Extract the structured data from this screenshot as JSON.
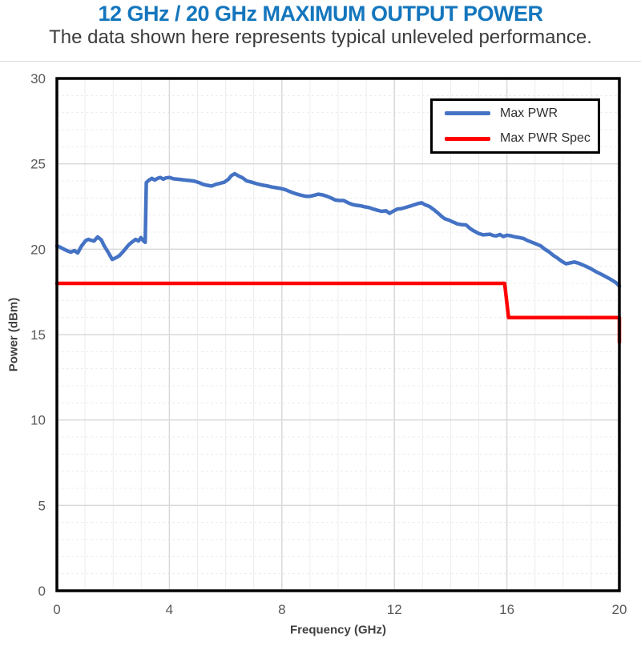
{
  "header": {
    "divider": true
  },
  "colors": {
    "title_text": "#1476BD",
    "subtitle_text": "#3C3C3C",
    "axis_text": "#595959",
    "grid_major": "#D9D9D9",
    "grid_minor": "#ECECEC",
    "plot_border": "#000000",
    "legend_border": "#000000",
    "max_pwr": "#4472C4",
    "max_pwr_spec": "#FF0000"
  },
  "chart_data": {
    "type": "line",
    "title": "12 GHz / 20 GHz MAXIMUM OUTPUT POWER",
    "subtitle": "The data shown here represents typical unleveled performance.",
    "xlabel": "Frequency (GHz)",
    "ylabel": "Power (dBm)",
    "xlim": [
      0,
      20
    ],
    "ylim": [
      0,
      30
    ],
    "x_ticks": [
      0,
      4,
      8,
      12,
      16,
      20
    ],
    "y_ticks": [
      0,
      5,
      10,
      15,
      20,
      25,
      30
    ],
    "minor_grid_step_x": 1,
    "minor_grid_step_y": 1,
    "grid": "major+minor",
    "legend_position": "top-right",
    "series": [
      {
        "name": "Max PWR",
        "color": "#4472C4",
        "points": [
          [
            0,
            20.2
          ],
          [
            0.12,
            20.12
          ],
          [
            0.25,
            20.0
          ],
          [
            0.38,
            19.9
          ],
          [
            0.5,
            19.83
          ],
          [
            0.62,
            19.92
          ],
          [
            0.74,
            19.78
          ],
          [
            0.88,
            20.2
          ],
          [
            1.02,
            20.5
          ],
          [
            1.12,
            20.58
          ],
          [
            1.22,
            20.52
          ],
          [
            1.32,
            20.48
          ],
          [
            1.45,
            20.72
          ],
          [
            1.58,
            20.54
          ],
          [
            1.68,
            20.2
          ],
          [
            1.82,
            19.83
          ],
          [
            1.97,
            19.4
          ],
          [
            2.1,
            19.5
          ],
          [
            2.22,
            19.62
          ],
          [
            2.35,
            19.85
          ],
          [
            2.45,
            20.05
          ],
          [
            2.55,
            20.25
          ],
          [
            2.67,
            20.42
          ],
          [
            2.8,
            20.58
          ],
          [
            2.9,
            20.48
          ],
          [
            2.99,
            20.68
          ],
          [
            3.07,
            20.5
          ],
          [
            3.14,
            20.4
          ],
          [
            3.18,
            23.9
          ],
          [
            3.28,
            24.05
          ],
          [
            3.38,
            24.15
          ],
          [
            3.48,
            24.05
          ],
          [
            3.58,
            24.15
          ],
          [
            3.68,
            24.2
          ],
          [
            3.78,
            24.1
          ],
          [
            3.88,
            24.18
          ],
          [
            4.0,
            24.2
          ],
          [
            4.15,
            24.12
          ],
          [
            4.3,
            24.1
          ],
          [
            4.45,
            24.07
          ],
          [
            4.6,
            24.04
          ],
          [
            4.75,
            24.02
          ],
          [
            4.9,
            23.98
          ],
          [
            5.05,
            23.9
          ],
          [
            5.2,
            23.8
          ],
          [
            5.35,
            23.74
          ],
          [
            5.5,
            23.7
          ],
          [
            5.65,
            23.8
          ],
          [
            5.8,
            23.86
          ],
          [
            5.95,
            23.92
          ],
          [
            6.1,
            24.1
          ],
          [
            6.2,
            24.3
          ],
          [
            6.32,
            24.42
          ],
          [
            6.45,
            24.3
          ],
          [
            6.6,
            24.18
          ],
          [
            6.75,
            24.0
          ],
          [
            6.9,
            23.94
          ],
          [
            7.05,
            23.86
          ],
          [
            7.2,
            23.8
          ],
          [
            7.35,
            23.74
          ],
          [
            7.5,
            23.7
          ],
          [
            7.65,
            23.64
          ],
          [
            7.8,
            23.6
          ],
          [
            7.95,
            23.56
          ],
          [
            8.1,
            23.5
          ],
          [
            8.25,
            23.4
          ],
          [
            8.4,
            23.3
          ],
          [
            8.55,
            23.22
          ],
          [
            8.7,
            23.15
          ],
          [
            8.85,
            23.1
          ],
          [
            9.0,
            23.1
          ],
          [
            9.15,
            23.16
          ],
          [
            9.3,
            23.22
          ],
          [
            9.45,
            23.18
          ],
          [
            9.6,
            23.1
          ],
          [
            9.75,
            23.0
          ],
          [
            9.9,
            22.88
          ],
          [
            10.05,
            22.85
          ],
          [
            10.2,
            22.85
          ],
          [
            10.35,
            22.72
          ],
          [
            10.5,
            22.62
          ],
          [
            10.65,
            22.57
          ],
          [
            10.8,
            22.54
          ],
          [
            10.95,
            22.48
          ],
          [
            11.1,
            22.44
          ],
          [
            11.25,
            22.35
          ],
          [
            11.4,
            22.28
          ],
          [
            11.55,
            22.22
          ],
          [
            11.7,
            22.25
          ],
          [
            11.83,
            22.1
          ],
          [
            11.95,
            22.22
          ],
          [
            12.1,
            22.35
          ],
          [
            12.25,
            22.38
          ],
          [
            12.4,
            22.45
          ],
          [
            12.55,
            22.52
          ],
          [
            12.7,
            22.6
          ],
          [
            12.85,
            22.68
          ],
          [
            12.97,
            22.72
          ],
          [
            13.1,
            22.6
          ],
          [
            13.25,
            22.5
          ],
          [
            13.4,
            22.32
          ],
          [
            13.55,
            22.12
          ],
          [
            13.68,
            21.92
          ],
          [
            13.8,
            21.78
          ],
          [
            13.95,
            21.7
          ],
          [
            14.1,
            21.58
          ],
          [
            14.25,
            21.48
          ],
          [
            14.4,
            21.44
          ],
          [
            14.55,
            21.42
          ],
          [
            14.7,
            21.2
          ],
          [
            14.85,
            21.05
          ],
          [
            15.0,
            20.92
          ],
          [
            15.15,
            20.84
          ],
          [
            15.28,
            20.86
          ],
          [
            15.4,
            20.88
          ],
          [
            15.52,
            20.8
          ],
          [
            15.62,
            20.78
          ],
          [
            15.75,
            20.86
          ],
          [
            15.88,
            20.74
          ],
          [
            16.0,
            20.82
          ],
          [
            16.15,
            20.78
          ],
          [
            16.3,
            20.72
          ],
          [
            16.45,
            20.68
          ],
          [
            16.6,
            20.62
          ],
          [
            16.75,
            20.5
          ],
          [
            16.9,
            20.4
          ],
          [
            17.05,
            20.3
          ],
          [
            17.2,
            20.2
          ],
          [
            17.35,
            20.0
          ],
          [
            17.5,
            19.84
          ],
          [
            17.65,
            19.64
          ],
          [
            17.8,
            19.48
          ],
          [
            17.95,
            19.3
          ],
          [
            18.1,
            19.15
          ],
          [
            18.25,
            19.2
          ],
          [
            18.4,
            19.25
          ],
          [
            18.55,
            19.18
          ],
          [
            18.7,
            19.08
          ],
          [
            18.85,
            18.97
          ],
          [
            19.0,
            18.85
          ],
          [
            19.15,
            18.7
          ],
          [
            19.3,
            18.58
          ],
          [
            19.45,
            18.45
          ],
          [
            19.6,
            18.32
          ],
          [
            19.75,
            18.18
          ],
          [
            19.87,
            18.05
          ],
          [
            20.0,
            17.85
          ]
        ]
      },
      {
        "name": "Max PWR Spec",
        "color": "#FF0000",
        "points": [
          [
            0,
            18
          ],
          [
            15.92,
            18
          ],
          [
            16.06,
            16
          ],
          [
            20,
            16
          ],
          [
            20,
            14.55
          ]
        ]
      }
    ]
  }
}
